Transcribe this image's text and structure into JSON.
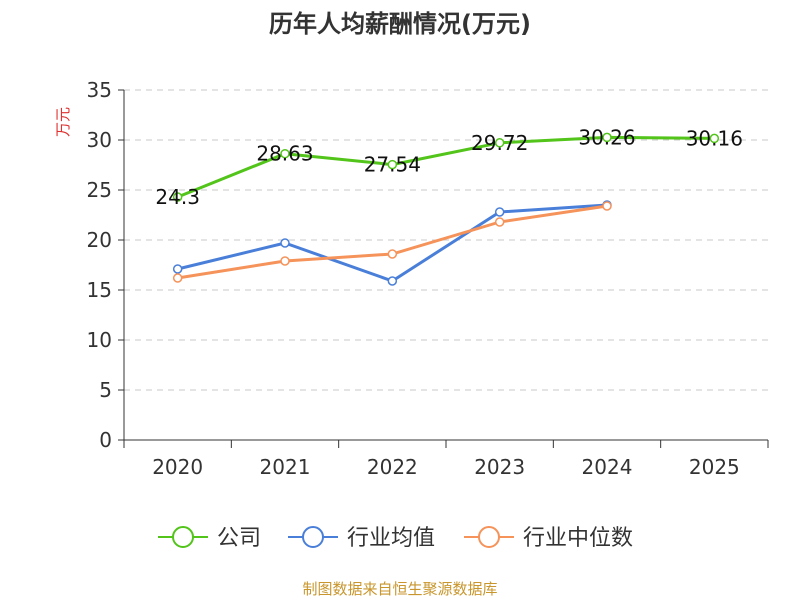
{
  "chart_data": {
    "type": "line",
    "title": "历年人均薪酬情况(万元)",
    "ylabel": "万元",
    "xlabel": "",
    "ylim": [
      0,
      35
    ],
    "yticks": [
      0,
      5,
      10,
      15,
      20,
      25,
      30,
      35
    ],
    "categories": [
      "2020",
      "2021",
      "2022",
      "2023",
      "2024",
      "2025"
    ],
    "grid": true,
    "legend_position": "bottom",
    "series": [
      {
        "name": "公司",
        "color": "#52c41a",
        "values": [
          24.3,
          28.63,
          27.54,
          29.72,
          30.26,
          30.16
        ],
        "labels": [
          "24.3",
          "28.63",
          "27.54",
          "29.72",
          "30.26",
          "30.16"
        ]
      },
      {
        "name": "行业均值",
        "color": "#4a7fd9",
        "values": [
          17.1,
          19.7,
          15.9,
          22.8,
          23.5,
          null
        ]
      },
      {
        "name": "行业中位数",
        "color": "#f5935a",
        "values": [
          16.2,
          17.9,
          18.6,
          21.8,
          23.4,
          null
        ]
      }
    ]
  },
  "footer": {
    "source": "制图数据来自恒生聚源数据库"
  }
}
